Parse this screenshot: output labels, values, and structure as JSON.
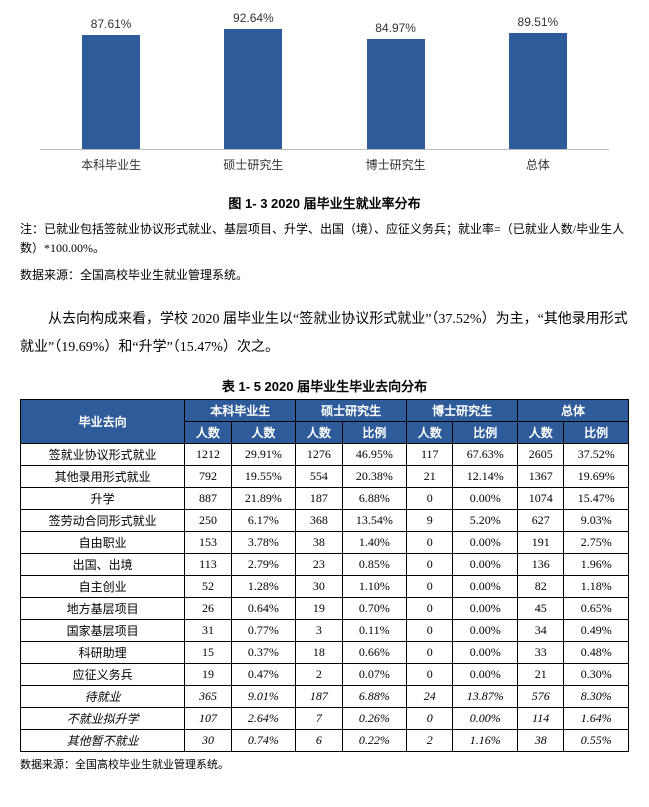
{
  "chart": {
    "bar_color": "#2e5c9a",
    "categories": [
      "本科毕业生",
      "硕士研究生",
      "博士研究生",
      "总体"
    ],
    "values": [
      87.61,
      92.64,
      84.97,
      89.51
    ],
    "labels": [
      "87.61%",
      "92.64%",
      "84.97%",
      "89.51%"
    ],
    "ymax": 100
  },
  "fig_title": "图 1- 3  2020 届毕业生就业率分布",
  "note_line1": "注：已就业包括签就业协议形式就业、基层项目、升学、出国（境）、应征义务兵；就业率=（已就业人数/毕业生人数）*100.00%。",
  "note_line2": "数据来源：全国高校毕业生就业管理系统。",
  "body_text": "从去向构成来看，学校 2020 届毕业生以“签就业协议形式就业”（37.52%）为主，“其他录用形式就业”（19.69%）和“升学”（15.47%）次之。",
  "table_title": "表 1- 5  2020 届毕业生毕业去向分布",
  "table": {
    "header_top": [
      "毕业去向",
      "本科毕业生",
      "硕士研究生",
      "博士研究生",
      "总体"
    ],
    "header_sub": [
      "人数",
      "人数",
      "人数",
      "比例",
      "人数",
      "比例",
      "人数",
      "比例"
    ],
    "rows": [
      {
        "name": "签就业协议形式就业",
        "c": [
          "1212",
          "29.91%",
          "1276",
          "46.95%",
          "117",
          "67.63%",
          "2605",
          "37.52%"
        ],
        "italic": false
      },
      {
        "name": "其他录用形式就业",
        "c": [
          "792",
          "19.55%",
          "554",
          "20.38%",
          "21",
          "12.14%",
          "1367",
          "19.69%"
        ],
        "italic": false
      },
      {
        "name": "升学",
        "c": [
          "887",
          "21.89%",
          "187",
          "6.88%",
          "0",
          "0.00%",
          "1074",
          "15.47%"
        ],
        "italic": false
      },
      {
        "name": "签劳动合同形式就业",
        "c": [
          "250",
          "6.17%",
          "368",
          "13.54%",
          "9",
          "5.20%",
          "627",
          "9.03%"
        ],
        "italic": false
      },
      {
        "name": "自由职业",
        "c": [
          "153",
          "3.78%",
          "38",
          "1.40%",
          "0",
          "0.00%",
          "191",
          "2.75%"
        ],
        "italic": false
      },
      {
        "name": "出国、出境",
        "c": [
          "113",
          "2.79%",
          "23",
          "0.85%",
          "0",
          "0.00%",
          "136",
          "1.96%"
        ],
        "italic": false
      },
      {
        "name": "自主创业",
        "c": [
          "52",
          "1.28%",
          "30",
          "1.10%",
          "0",
          "0.00%",
          "82",
          "1.18%"
        ],
        "italic": false
      },
      {
        "name": "地方基层项目",
        "c": [
          "26",
          "0.64%",
          "19",
          "0.70%",
          "0",
          "0.00%",
          "45",
          "0.65%"
        ],
        "italic": false
      },
      {
        "name": "国家基层项目",
        "c": [
          "31",
          "0.77%",
          "3",
          "0.11%",
          "0",
          "0.00%",
          "34",
          "0.49%"
        ],
        "italic": false
      },
      {
        "name": "科研助理",
        "c": [
          "15",
          "0.37%",
          "18",
          "0.66%",
          "0",
          "0.00%",
          "33",
          "0.48%"
        ],
        "italic": false
      },
      {
        "name": "应征义务兵",
        "c": [
          "19",
          "0.47%",
          "2",
          "0.07%",
          "0",
          "0.00%",
          "21",
          "0.30%"
        ],
        "italic": false
      },
      {
        "name": "待就业",
        "c": [
          "365",
          "9.01%",
          "187",
          "6.88%",
          "24",
          "13.87%",
          "576",
          "8.30%"
        ],
        "italic": true
      },
      {
        "name": "不就业拟升学",
        "c": [
          "107",
          "2.64%",
          "7",
          "0.26%",
          "0",
          "0.00%",
          "114",
          "1.64%"
        ],
        "italic": true
      },
      {
        "name": "其他暂不就业",
        "c": [
          "30",
          "0.74%",
          "6",
          "0.22%",
          "2",
          "1.16%",
          "38",
          "0.55%"
        ],
        "italic": true
      }
    ]
  },
  "table_src": "数据来源：全国高校毕业生就业管理系统。"
}
